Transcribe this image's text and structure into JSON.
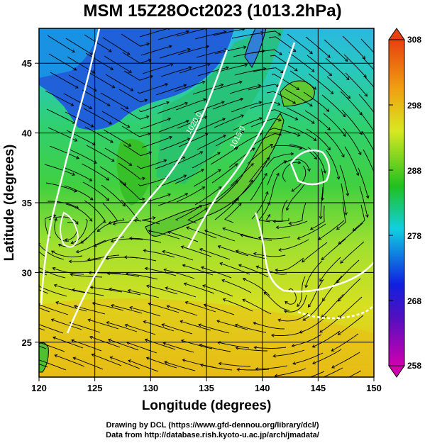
{
  "title": "MSM 15Z28Oct2023 (1013.2hPa)",
  "x_axis": {
    "label": "Longitude (degrees)",
    "range": [
      120,
      150
    ],
    "ticks": [
      "120",
      "125",
      "130",
      "135",
      "140",
      "145",
      "150"
    ]
  },
  "y_axis": {
    "label": "Latitude  (degrees)",
    "range": [
      22.5,
      47.5
    ],
    "ticks": [
      "25",
      "30",
      "35",
      "40",
      "45"
    ]
  },
  "colorbar": {
    "range": [
      258,
      308
    ],
    "ticks": [
      "308",
      "298",
      "288",
      "278",
      "268",
      "258"
    ],
    "colors": [
      "#d000b0",
      "#1020e0",
      "#10d0e0",
      "#20c020",
      "#d8e820",
      "#e84010"
    ]
  },
  "isobar_labels": [
    "1020.0",
    "1015.0"
  ],
  "credits": [
    "Drawing by DCL (https://www.gfd-dennou.org/library/dcl/)",
    "Data from http://database.rish.kyoto-u.ac.jp/arch/jmadata/"
  ]
}
